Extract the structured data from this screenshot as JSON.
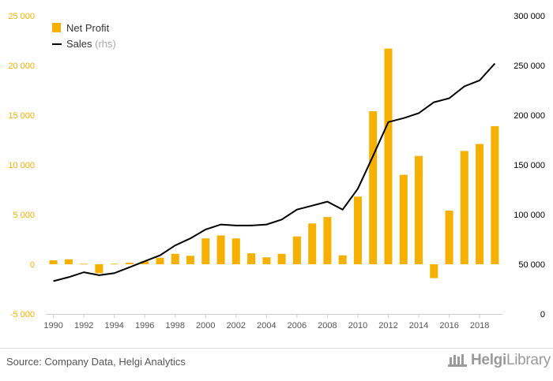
{
  "chart_data": {
    "type": "bar+line",
    "legend": [
      {
        "label": "Net Profit",
        "suffix": "",
        "color": "#f5b000",
        "kind": "bar"
      },
      {
        "label": "Sales",
        "suffix": " (rhs)",
        "color": "#000000",
        "kind": "line"
      }
    ],
    "legend_position": "top-left",
    "grid": false,
    "x": [
      1990,
      1991,
      1992,
      1993,
      1994,
      1995,
      1996,
      1997,
      1998,
      1999,
      2000,
      2001,
      2002,
      2003,
      2004,
      2005,
      2006,
      2007,
      2008,
      2009,
      2010,
      2011,
      2012,
      2013,
      2014,
      2015,
      2016,
      2017,
      2018,
      2019
    ],
    "x_tick_labels": [
      "1990",
      "1992",
      "1994",
      "1996",
      "1998",
      "2000",
      "2002",
      "2004",
      "2006",
      "2008",
      "2010",
      "2012",
      "2014",
      "2016",
      "2018"
    ],
    "y_left": {
      "ticks": [
        "-5 000",
        "0",
        "5 000",
        "10 000",
        "15 000",
        "20 000",
        "25 000"
      ],
      "tick_values": [
        -5000,
        0,
        5000,
        10000,
        15000,
        20000,
        25000
      ],
      "ylim": [
        -5000,
        25000
      ],
      "color": "#f5b000"
    },
    "y_right": {
      "ticks": [
        "0",
        "50 000",
        "100 000",
        "150 000",
        "200 000",
        "250 000",
        "300 000"
      ],
      "tick_values": [
        0,
        50000,
        100000,
        150000,
        200000,
        250000,
        300000
      ],
      "ylim": [
        0,
        300000
      ],
      "color": "#000000"
    },
    "series": [
      {
        "name": "Net Profit",
        "axis": "left",
        "type": "bar",
        "color": "#f5b000",
        "values": [
          400,
          500,
          50,
          -900,
          50,
          150,
          300,
          650,
          1050,
          850,
          2600,
          2900,
          2600,
          1100,
          700,
          1050,
          2800,
          4100,
          4750,
          900,
          6800,
          15400,
          21700,
          9000,
          10900,
          -1400,
          5400,
          11400,
          12100,
          13900
        ]
      },
      {
        "name": "Sales",
        "axis": "right",
        "type": "line",
        "color": "#000000",
        "values": [
          33000,
          37000,
          42000,
          39000,
          41000,
          47000,
          53000,
          59000,
          69000,
          76000,
          85000,
          90000,
          89000,
          89000,
          90000,
          95000,
          105000,
          109000,
          113000,
          105000,
          126000,
          159000,
          193000,
          197000,
          202000,
          213000,
          217000,
          229000,
          235000,
          252000
        ]
      }
    ]
  },
  "footer": {
    "source": "Source: Company Data, Helgi Analytics",
    "logo_prefix": "Helgi",
    "logo_suffix": "Library"
  }
}
